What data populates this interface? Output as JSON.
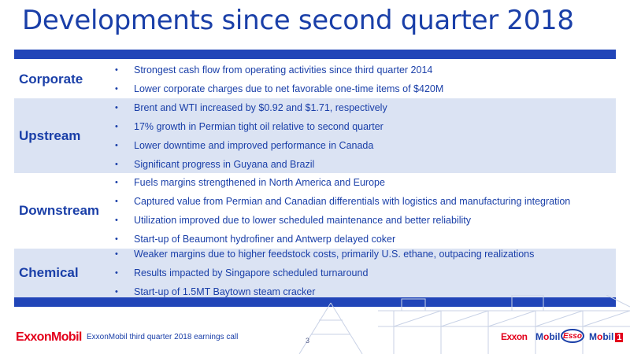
{
  "slide": {
    "title": "Developments since second quarter 2018",
    "sections": [
      {
        "label": "Corporate",
        "bullets": [
          "Strongest cash flow from operating activities since third quarter 2014",
          "Lower corporate charges due to net favorable one-time items of $420M"
        ]
      },
      {
        "label": "Upstream",
        "bullets": [
          "Brent and WTI increased by $0.92 and $1.71, respectively",
          "17% growth in Permian tight oil relative to second quarter",
          "Lower downtime and improved performance in Canada",
          "Significant progress in Guyana and Brazil"
        ]
      },
      {
        "label": "Downstream",
        "bullets": [
          "Fuels margins strengthened in North America and Europe",
          "Captured value from Permian and Canadian differentials with logistics and manufacturing integration",
          "Utilization improved due to lower scheduled maintenance and better reliability",
          "Start-up of Beaumont hydrofiner and Antwerp delayed coker"
        ]
      },
      {
        "label": "Chemical",
        "bullets": [
          "Weaker margins due to higher feedstock costs, primarily U.S. ethane, outpacing realizations",
          "Results impacted by Singapore scheduled turnaround",
          "Start-up of 1.5MT Baytown steam cracker"
        ]
      }
    ],
    "bullet_glyph": "•"
  },
  "footer": {
    "logo": "ExxonMobil",
    "caption": "ExxonMobil third quarter 2018 earnings call",
    "page_number": "3",
    "brands": {
      "exxon": "Exxon",
      "mobil_prefix": "M",
      "mobil_o": "o",
      "mobil_suffix": "bil",
      "esso": "Esso",
      "mobil1_prefix": "M",
      "mobil1_o": "o",
      "mobil1_suffix": "bil",
      "mobil1_one": "1"
    }
  },
  "colors": {
    "primary_blue": "#1a3fa8",
    "bar_blue": "#2145b8",
    "shade": "#dbe3f3",
    "brand_red": "#e3001b"
  }
}
